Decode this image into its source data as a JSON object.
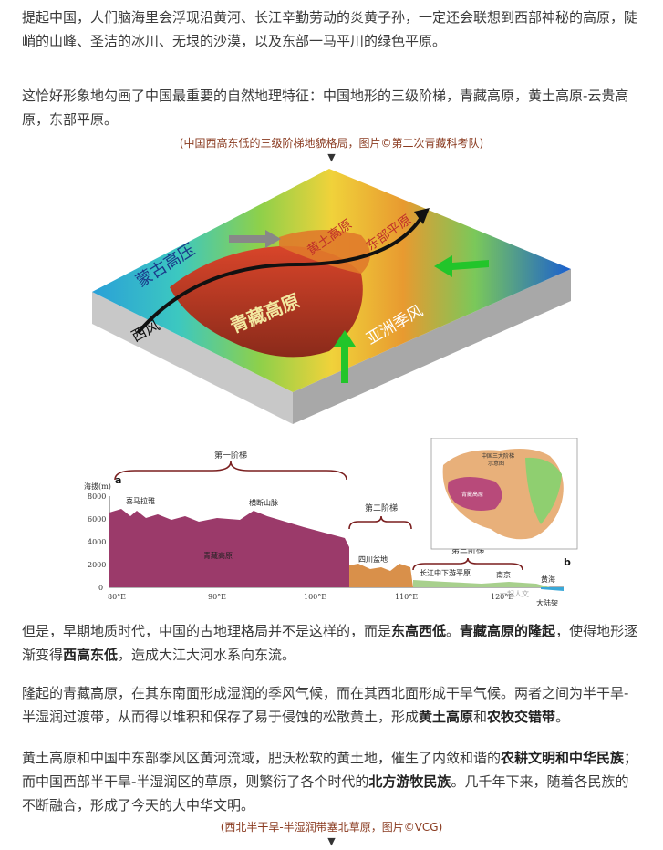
{
  "paragraphs": {
    "p1": "提起中国，人们脑海里会浮现沿黄河、长江辛勤劳动的炎黄子孙，一定还会联想到西部神秘的高原，陡峭的山峰、圣洁的冰川、无垠的沙漠，以及东部一马平川的绿色平原。",
    "p2": "这恰好形象地勾画了中国最重要的自然地理特征：中国地形的三级阶梯，青藏高原，黄土高原-云贵高原，东部平原。",
    "p3a": "但是，早期地质时代，中国的古地理格局并不是这样的，而是",
    "p3b": "东高西低",
    "p3c": "。",
    "p3d": "青藏高原的隆起",
    "p3e": "，使得地形逐渐变得",
    "p3f": "西高东低",
    "p3g": "，造成大江大河水系向东流。",
    "p4a": "隆起的青藏高原，在其东南面形成湿润的季风气候，而在其西北面形成干旱气候。两者之间为半干旱-半湿润过渡带，从而得以堆积和保存了易于侵蚀的松散黄土，形成",
    "p4b": "黄土高原",
    "p4c": "和",
    "p4d": "农牧交错带",
    "p4e": "。",
    "p5a": "黄土高原和中国中东部季风区黄河流域，肥沃松软的黄土地，催生了内敛和谐的",
    "p5b": "农耕文明和中华民族",
    "p5c": "；而中国西部半干旱-半湿润区的草原，则繁衍了各个时代的",
    "p5d": "北方游牧民族",
    "p5e": "。几千年下来，随着各民族的不断融合，形成了今天的大中华文明。"
  },
  "captions": {
    "c1": "(中国西高东低的三级阶梯地貌格局，图片©第二次青藏科考队)",
    "c2": "(西北半干旱-半湿润带塞北草原，图片©VCG)",
    "down": "▼"
  },
  "figure1": {
    "labels": {
      "mongolia": "蒙古高压",
      "westerly": "西风",
      "tibet": "青藏高原",
      "loess": "黄土高原",
      "east": "东部平原",
      "monsoon": "亚洲季风"
    }
  },
  "figure2": {
    "panel_a": "a",
    "panel_b": "b",
    "ylabel": "海拔(m)",
    "yticks": [
      "8000",
      "6000",
      "4000",
      "2000",
      "0"
    ],
    "xticks": [
      "80°E",
      "90°E",
      "100°E",
      "110°E",
      "120°E"
    ],
    "step1": "第一阶梯",
    "step2": "第二阶梯",
    "step3": "第三阶梯",
    "himalaya": "喜马拉雅",
    "hengduan": "横断山脉",
    "tibet": "青藏高原",
    "sichuan": "四川盆地",
    "yangtze": "长江中下游平原",
    "nanjing": "南京",
    "yellowsea": "黄海",
    "shelf": "大陆架",
    "inset_title1": "中国三大阶梯",
    "inset_title2": "示意图",
    "inset_tibet": "青藏高原",
    "watermark": "一起人文"
  },
  "colors": {
    "caption": "#8a3b20",
    "step1_fill": "#9b3a6a",
    "step2_fill": "#d9904a",
    "step3_fill": "#a8d08d",
    "bracket": "#7a1f1f",
    "arrow_green": "#22c52a"
  }
}
